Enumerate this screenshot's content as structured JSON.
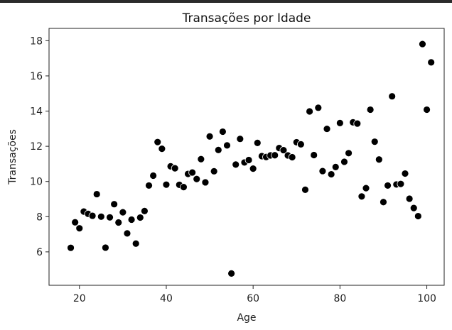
{
  "chart_data": {
    "type": "scatter",
    "title": "Transações por Idade",
    "xlabel": "Age",
    "ylabel": "Transações",
    "xlim": [
      13,
      104
    ],
    "ylim": [
      4.1,
      18.7
    ],
    "xticks": [
      20,
      40,
      60,
      80,
      100
    ],
    "yticks": [
      6,
      8,
      10,
      12,
      14,
      16,
      18
    ],
    "grid": false,
    "marker_color": "#000000",
    "marker_edge": "#ffffff",
    "series": [
      {
        "points": [
          [
            18,
            6.23
          ],
          [
            19,
            7.68
          ],
          [
            20,
            7.34
          ],
          [
            21,
            8.29
          ],
          [
            22,
            8.16
          ],
          [
            23,
            8.05
          ],
          [
            24,
            9.28
          ],
          [
            25,
            8.0
          ],
          [
            26,
            6.24
          ],
          [
            27,
            7.96
          ],
          [
            28,
            8.71
          ],
          [
            29,
            7.67
          ],
          [
            30,
            8.25
          ],
          [
            31,
            7.05
          ],
          [
            32,
            7.83
          ],
          [
            33,
            6.47
          ],
          [
            34,
            7.95
          ],
          [
            35,
            8.32
          ],
          [
            36,
            9.77
          ],
          [
            37,
            10.33
          ],
          [
            38,
            12.24
          ],
          [
            39,
            11.86
          ],
          [
            40,
            9.82
          ],
          [
            41,
            10.86
          ],
          [
            42,
            10.75
          ],
          [
            43,
            9.81
          ],
          [
            44,
            9.68
          ],
          [
            45,
            10.43
          ],
          [
            46,
            10.51
          ],
          [
            47,
            10.14
          ],
          [
            48,
            11.27
          ],
          [
            49,
            9.95
          ],
          [
            50,
            12.56
          ],
          [
            51,
            10.58
          ],
          [
            52,
            11.79
          ],
          [
            53,
            12.83
          ],
          [
            54,
            12.05
          ],
          [
            55,
            4.77
          ],
          [
            56,
            10.96
          ],
          [
            57,
            12.42
          ],
          [
            58,
            11.08
          ],
          [
            59,
            11.22
          ],
          [
            60,
            10.73
          ],
          [
            61,
            12.19
          ],
          [
            62,
            11.44
          ],
          [
            63,
            11.39
          ],
          [
            64,
            11.48
          ],
          [
            65,
            11.49
          ],
          [
            66,
            11.9
          ],
          [
            67,
            11.78
          ],
          [
            68,
            11.48
          ],
          [
            69,
            11.38
          ],
          [
            70,
            12.23
          ],
          [
            71,
            12.11
          ],
          [
            72,
            9.53
          ],
          [
            73,
            13.98
          ],
          [
            74,
            11.5
          ],
          [
            75,
            14.19
          ],
          [
            76,
            10.59
          ],
          [
            77,
            12.99
          ],
          [
            78,
            10.41
          ],
          [
            79,
            10.82
          ],
          [
            80,
            13.32
          ],
          [
            81,
            11.12
          ],
          [
            82,
            11.61
          ],
          [
            83,
            13.36
          ],
          [
            84,
            13.29
          ],
          [
            85,
            9.15
          ],
          [
            86,
            9.62
          ],
          [
            87,
            14.08
          ],
          [
            88,
            12.26
          ],
          [
            89,
            11.25
          ],
          [
            90,
            8.83
          ],
          [
            91,
            9.77
          ],
          [
            92,
            14.84
          ],
          [
            93,
            9.83
          ],
          [
            94,
            9.86
          ],
          [
            95,
            10.45
          ],
          [
            96,
            9.02
          ],
          [
            97,
            8.49
          ],
          [
            98,
            8.03
          ],
          [
            99,
            17.81
          ],
          [
            100,
            14.08
          ],
          [
            101,
            16.77
          ]
        ]
      }
    ]
  }
}
